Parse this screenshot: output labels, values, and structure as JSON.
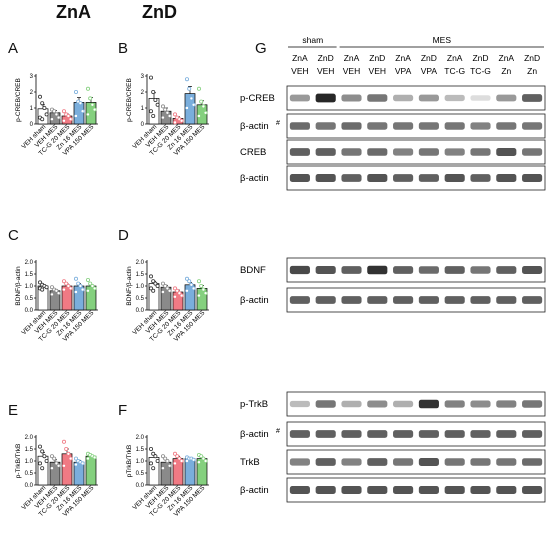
{
  "col_titles": [
    "ZnA",
    "ZnD"
  ],
  "panel_letters": [
    "A",
    "B",
    "C",
    "D",
    "E",
    "F",
    "G"
  ],
  "bar_colors": [
    "#ffffff",
    "#8a8a8a",
    "#f07a84",
    "#7aaedc",
    "#84d07e"
  ],
  "chart_data": [
    {
      "id": "A",
      "type": "bar",
      "ylabel": "p-CREB/CREB",
      "yticks": [
        "0",
        "1",
        "2",
        "3"
      ],
      "ylim": [
        0,
        3
      ],
      "categories": [
        "VEH sham",
        "VEH MES",
        "TC-G 20 MES",
        "Zn 16 MES",
        "VPA 150 MES"
      ],
      "values": [
        0.95,
        0.7,
        0.5,
        1.35,
        1.35
      ],
      "errors": [
        0.25,
        0.15,
        0.12,
        0.3,
        0.3
      ],
      "points": [
        [
          1.7,
          1.3,
          1.0,
          0.6,
          0.4,
          0.3
        ],
        [
          0.9,
          0.8,
          0.6,
          0.4,
          0.3
        ],
        [
          0.8,
          0.6,
          0.5,
          0.3,
          0.2
        ],
        [
          2.0,
          1.4,
          1.3,
          0.8,
          0.5
        ],
        [
          2.2,
          1.6,
          1.2,
          0.9,
          0.6
        ]
      ]
    },
    {
      "id": "B",
      "type": "bar",
      "ylabel": "p-CREB/CREB",
      "yticks": [
        "0",
        "1",
        "2",
        "3"
      ],
      "ylim": [
        0,
        3
      ],
      "categories": [
        "VEH sham",
        "VEH MES",
        "TC-G 20 MES",
        "Zn 16 MES",
        "VPA 150 MES"
      ],
      "values": [
        1.6,
        0.8,
        0.35,
        1.9,
        1.2
      ],
      "errors": [
        0.35,
        0.2,
        0.1,
        0.45,
        0.25
      ],
      "points": [
        [
          2.9,
          2.0,
          1.5,
          1.2,
          0.8,
          0.5
        ],
        [
          1.1,
          0.9,
          0.7,
          0.5,
          0.4
        ],
        [
          0.6,
          0.4,
          0.3,
          0.2,
          0.1
        ],
        [
          2.8,
          2.2,
          1.6,
          1.2,
          1.0
        ],
        [
          2.2,
          1.4,
          1.1,
          0.7,
          0.5
        ]
      ]
    },
    {
      "id": "C",
      "type": "bar",
      "ylabel": "BDNF/β-actin",
      "yticks": [
        "0.0",
        "0.5",
        "1.0",
        "1.5",
        "2.0"
      ],
      "ylim": [
        0,
        2
      ],
      "categories": [
        "VEH sham",
        "VEH MES",
        "TC-G 20 MES",
        "Zn 16 MES",
        "VPA 150 MES"
      ],
      "values": [
        1.0,
        0.8,
        1.0,
        1.0,
        1.0
      ],
      "errors": [
        0.06,
        0.06,
        0.08,
        0.1,
        0.07
      ],
      "points": [
        [
          1.15,
          1.05,
          1.0,
          0.95,
          0.9,
          0.85
        ],
        [
          0.95,
          0.85,
          0.8,
          0.7,
          0.65
        ],
        [
          1.2,
          1.1,
          1.0,
          0.9,
          0.85
        ],
        [
          1.3,
          1.1,
          1.0,
          0.85,
          0.75
        ],
        [
          1.25,
          1.1,
          1.0,
          0.9,
          0.8
        ]
      ]
    },
    {
      "id": "D",
      "type": "bar",
      "ylabel": "BDNF/β-actin",
      "yticks": [
        "0.0",
        "0.5",
        "1.0",
        "1.5",
        "2.0"
      ],
      "ylim": [
        0,
        2
      ],
      "categories": [
        "VEH sham",
        "VEH MES",
        "TC-G 20 MES",
        "Zn 16 MES",
        "VPA 150 MES"
      ],
      "values": [
        1.1,
        0.95,
        0.75,
        1.05,
        0.9
      ],
      "errors": [
        0.1,
        0.08,
        0.08,
        0.1,
        0.12
      ],
      "points": [
        [
          1.4,
          1.2,
          1.1,
          1.0,
          0.9,
          0.8
        ],
        [
          1.1,
          1.0,
          0.9,
          0.8,
          0.75
        ],
        [
          0.9,
          0.8,
          0.7,
          0.6,
          0.55
        ],
        [
          1.3,
          1.2,
          1.05,
          0.9,
          0.8
        ],
        [
          1.2,
          1.0,
          0.85,
          0.7,
          0.6
        ]
      ]
    },
    {
      "id": "E",
      "type": "bar",
      "ylabel": "p-TrkB/TrkB",
      "yticks": [
        "0.0",
        "0.5",
        "1.0",
        "1.5",
        "2.0"
      ],
      "ylim": [
        0,
        2
      ],
      "categories": [
        "VEH sham",
        "VEH MES",
        "TC-G 20 MES",
        "Zn 16 MES",
        "VPA 150 MES"
      ],
      "values": [
        1.2,
        0.95,
        1.3,
        0.95,
        1.2
      ],
      "errors": [
        0.15,
        0.1,
        0.2,
        0.08,
        0.05
      ],
      "points": [
        [
          1.6,
          1.4,
          1.2,
          1.0,
          0.9,
          0.7
        ],
        [
          1.2,
          1.1,
          0.9,
          0.8,
          0.7
        ],
        [
          1.8,
          1.5,
          1.3,
          1.1,
          0.8
        ],
        [
          1.1,
          1.0,
          0.95,
          0.9,
          0.85
        ],
        [
          1.3,
          1.25,
          1.2,
          1.15,
          1.1
        ]
      ]
    },
    {
      "id": "F",
      "type": "bar",
      "ylabel": "pTrkB/TrkB",
      "yticks": [
        "0.0",
        "0.5",
        "1.0",
        "1.5",
        "2.0"
      ],
      "ylim": [
        0,
        2
      ],
      "categories": [
        "VEH sham",
        "VEH MES",
        "TC-G 20 MES",
        "Zn 16 MES",
        "VPA 150 MES"
      ],
      "values": [
        1.15,
        0.95,
        1.1,
        1.1,
        1.1
      ],
      "errors": [
        0.12,
        0.1,
        0.1,
        0.05,
        0.06
      ],
      "points": [
        [
          1.5,
          1.3,
          1.2,
          1.0,
          0.9,
          0.7
        ],
        [
          1.2,
          1.1,
          1.0,
          0.8,
          0.7
        ],
        [
          1.3,
          1.2,
          1.1,
          1.0,
          0.9
        ],
        [
          1.15,
          1.1,
          1.1,
          1.05,
          1.0
        ],
        [
          1.25,
          1.2,
          1.1,
          1.0,
          0.95
        ]
      ]
    }
  ],
  "blot": {
    "header": {
      "sham": "sham",
      "mes": "MES"
    },
    "lanes": [
      [
        "ZnA",
        "VEH"
      ],
      [
        "ZnD",
        "VEH"
      ],
      [
        "ZnA",
        "VEH"
      ],
      [
        "ZnD",
        "VEH"
      ],
      [
        "ZnA",
        "VPA"
      ],
      [
        "ZnD",
        "VPA"
      ],
      [
        "ZnA",
        "TC-G"
      ],
      [
        "ZnD",
        "TC-G"
      ],
      [
        "ZnA",
        "Zn"
      ],
      [
        "ZnD",
        "Zn"
      ]
    ],
    "groups": [
      {
        "rows": [
          {
            "label": "p-CREB",
            "hash": false,
            "intensity": [
              0.45,
              0.95,
              0.5,
              0.6,
              0.35,
              0.45,
              0.3,
              0.15,
              0.45,
              0.7
            ]
          },
          {
            "label": "β-actin",
            "hash": true,
            "intensity": [
              0.65,
              0.6,
              0.65,
              0.6,
              0.6,
              0.6,
              0.6,
              0.55,
              0.6,
              0.6
            ]
          },
          {
            "label": "CREB",
            "hash": false,
            "intensity": [
              0.7,
              0.7,
              0.6,
              0.65,
              0.55,
              0.6,
              0.55,
              0.6,
              0.75,
              0.6
            ]
          },
          {
            "label": "β-actin",
            "hash": false,
            "intensity": [
              0.75,
              0.75,
              0.7,
              0.75,
              0.7,
              0.7,
              0.75,
              0.7,
              0.75,
              0.75
            ]
          }
        ]
      },
      {
        "rows": [
          {
            "label": "BDNF",
            "hash": false,
            "intensity": [
              0.8,
              0.75,
              0.7,
              0.9,
              0.7,
              0.65,
              0.7,
              0.6,
              0.7,
              0.75
            ]
          },
          {
            "label": "β-actin",
            "hash": false,
            "intensity": [
              0.7,
              0.7,
              0.7,
              0.7,
              0.7,
              0.7,
              0.7,
              0.7,
              0.7,
              0.7
            ]
          }
        ]
      },
      {
        "rows": [
          {
            "label": "p-TrkB",
            "hash": false,
            "intensity": [
              0.3,
              0.6,
              0.35,
              0.5,
              0.35,
              0.9,
              0.55,
              0.5,
              0.55,
              0.6
            ]
          },
          {
            "label": "β-actin",
            "hash": true,
            "intensity": [
              0.7,
              0.7,
              0.7,
              0.7,
              0.7,
              0.7,
              0.7,
              0.7,
              0.7,
              0.7
            ]
          },
          {
            "label": "TrkB",
            "hash": false,
            "intensity": [
              0.55,
              0.7,
              0.55,
              0.7,
              0.6,
              0.75,
              0.6,
              0.6,
              0.6,
              0.65
            ]
          },
          {
            "label": "β-actin",
            "hash": false,
            "intensity": [
              0.75,
              0.75,
              0.75,
              0.75,
              0.75,
              0.75,
              0.75,
              0.75,
              0.75,
              0.75
            ]
          }
        ]
      }
    ]
  }
}
